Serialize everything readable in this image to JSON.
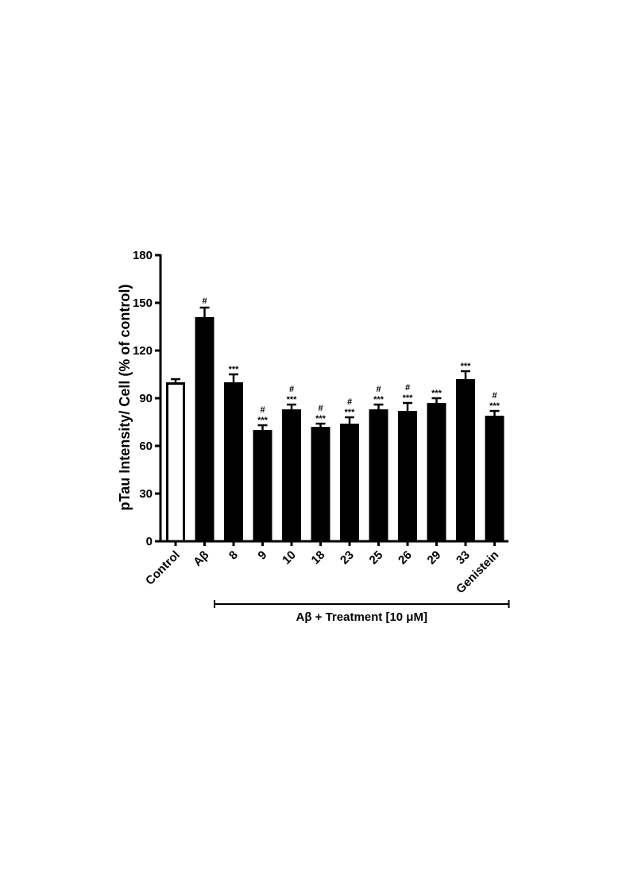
{
  "colors": {
    "axis": "#000000",
    "bar_fill": "#000000",
    "control_fill": "#ffffff"
  },
  "chart_data": {
    "type": "bar",
    "ylabel": "pTau Intensity/ Cell (% of control)",
    "xlabel": "",
    "ylim": [
      0,
      180
    ],
    "yticks": [
      "0",
      "30",
      "60",
      "90",
      "120",
      "150",
      "180"
    ],
    "categories": [
      "Control",
      "Aβ",
      "8",
      "9",
      "10",
      "18",
      "23",
      "25",
      "26",
      "29",
      "33",
      "Genistein"
    ],
    "values": [
      100,
      141,
      100,
      70,
      83,
      72,
      74,
      83,
      82,
      87,
      102,
      79
    ],
    "errors": [
      2,
      6,
      5,
      3,
      3,
      2,
      4,
      3,
      5,
      3,
      5,
      3
    ],
    "filled": [
      false,
      true,
      true,
      true,
      true,
      true,
      true,
      true,
      true,
      true,
      true,
      true
    ],
    "annotations": [
      {
        "hash": "",
        "stars": ""
      },
      {
        "hash": "#",
        "stars": ""
      },
      {
        "hash": "",
        "stars": "***"
      },
      {
        "hash": "#",
        "stars": "***"
      },
      {
        "hash": "#",
        "stars": "***"
      },
      {
        "hash": "#",
        "stars": "***"
      },
      {
        "hash": "#",
        "stars": "***"
      },
      {
        "hash": "#",
        "stars": "***"
      },
      {
        "hash": "#",
        "stars": "***"
      },
      {
        "hash": "",
        "stars": "***"
      },
      {
        "hash": "",
        "stars": "***"
      },
      {
        "hash": "#",
        "stars": "***"
      }
    ],
    "group": {
      "label": "Aβ + Treatment [10 μM]",
      "from_index": 2,
      "to_index": 11
    }
  }
}
